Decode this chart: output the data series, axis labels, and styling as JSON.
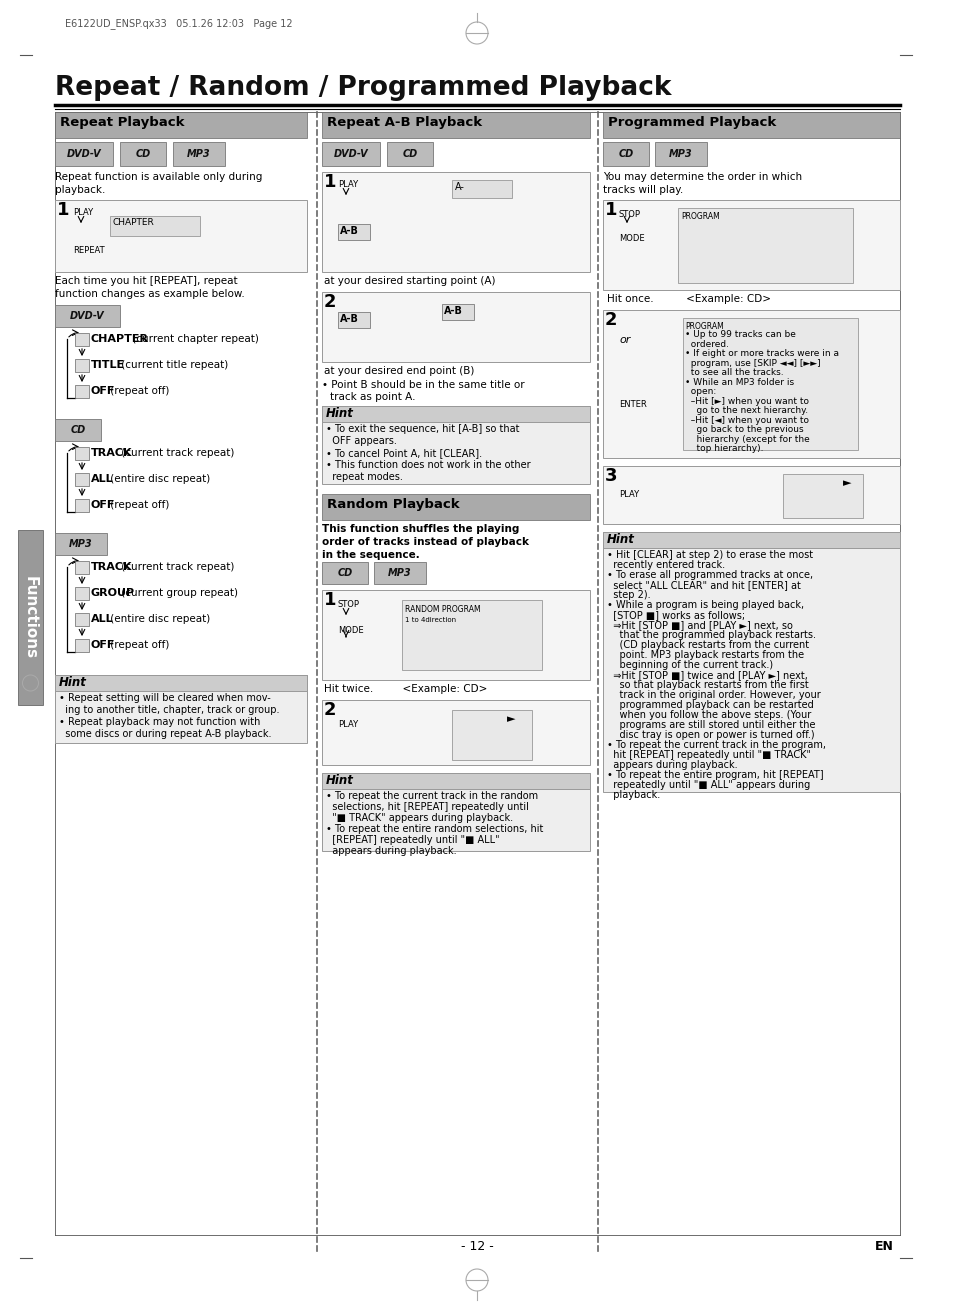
{
  "page_header": "E6122UD_ENSP.qx33   05.1.26 12:03   Page 12",
  "title": "Repeat / Random / Programmed Playback",
  "col1_header": "Repeat Playback",
  "col2_header": "Repeat A-B Playback",
  "col3_header": "Programmed Playback",
  "bg_color": "#ffffff",
  "header_bg": "#aaaaaa",
  "icon_bg": "#bbbbbb",
  "hint_bg": "#eeeeee",
  "hint_header_bg": "#cccccc",
  "random_header_bg": "#aaaaaa",
  "tab_color": "#999999",
  "border_color": "#000000",
  "dashed_color": "#666666",
  "page_num": "- 12 -",
  "page_en": "EN",
  "outer_border": "#333333"
}
